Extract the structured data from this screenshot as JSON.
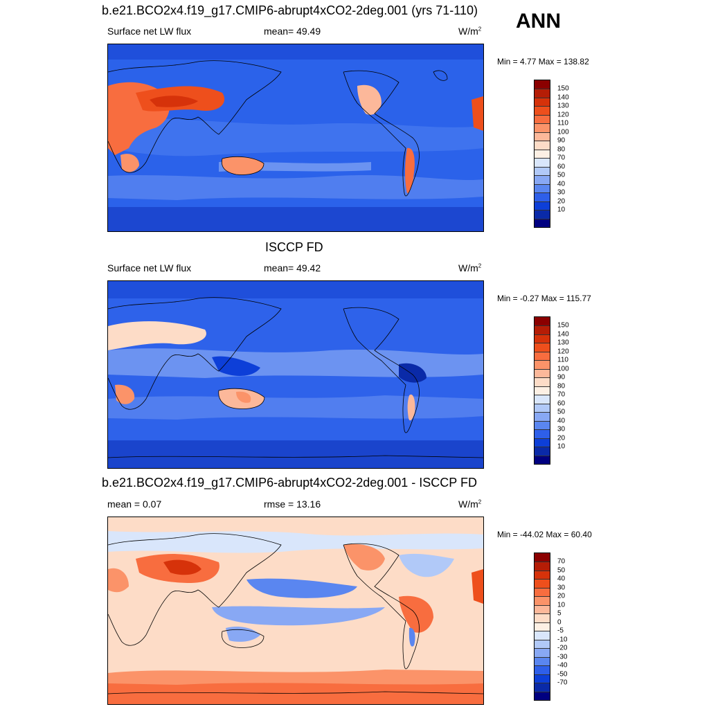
{
  "season": "ANN",
  "panel1": {
    "title": "b.e21.BCO2x4.f19_g17.CMIP6-abrupt4xCO2-2deg.001 (yrs 71-110)",
    "variable": "Surface net LW flux",
    "stat": "mean=  49.49",
    "units": "W/m",
    "units_sup": "2",
    "minmax": "Min =   4.77 Max = 138.82"
  },
  "panel2": {
    "title": "ISCCP FD",
    "variable": "Surface net LW flux",
    "stat": "mean=  49.42",
    "units": "W/m",
    "units_sup": "2",
    "minmax": "Min =  -0.27 Max = 115.77"
  },
  "panel3": {
    "title": "b.e21.BCO2x4.f19_g17.CMIP6-abrupt4xCO2-2deg.001 - ISCCP FD",
    "stat_left": "mean =   0.07",
    "stat_mid": "rmse =  13.16",
    "units": "W/m",
    "units_sup": "2",
    "minmax": "Min = -44.02 Max =  60.40"
  },
  "colorbar_abs": {
    "labels": [
      "150",
      "140",
      "130",
      "120",
      "110",
      "100",
      "90",
      "80",
      "70",
      "60",
      "50",
      "40",
      "30",
      "20",
      "10"
    ],
    "colors": [
      "#8b0000",
      "#b51d06",
      "#d6320a",
      "#ee4f1c",
      "#f86d3f",
      "#fb9369",
      "#fcb89a",
      "#fddcc7",
      "#fdf0e4",
      "#d9e6fb",
      "#b1c9f8",
      "#88a8f4",
      "#5a86f0",
      "#2e5fe9",
      "#0d3fd8",
      "#0a2aa8",
      "#000080"
    ]
  },
  "colorbar_diff": {
    "labels": [
      "70",
      "50",
      "40",
      "30",
      "20",
      "10",
      "5",
      "0",
      "-5",
      "-10",
      "-20",
      "-30",
      "-40",
      "-50",
      "-70"
    ],
    "colors": [
      "#8b0000",
      "#b51d06",
      "#d6320a",
      "#ee4f1c",
      "#f86d3f",
      "#fb9369",
      "#fcb89a",
      "#fddcc7",
      "#fdf0e4",
      "#d9e6fb",
      "#b1c9f8",
      "#88a8f4",
      "#5a86f0",
      "#2e5fe9",
      "#0d3fd8",
      "#0a2aa8",
      "#000080"
    ]
  }
}
